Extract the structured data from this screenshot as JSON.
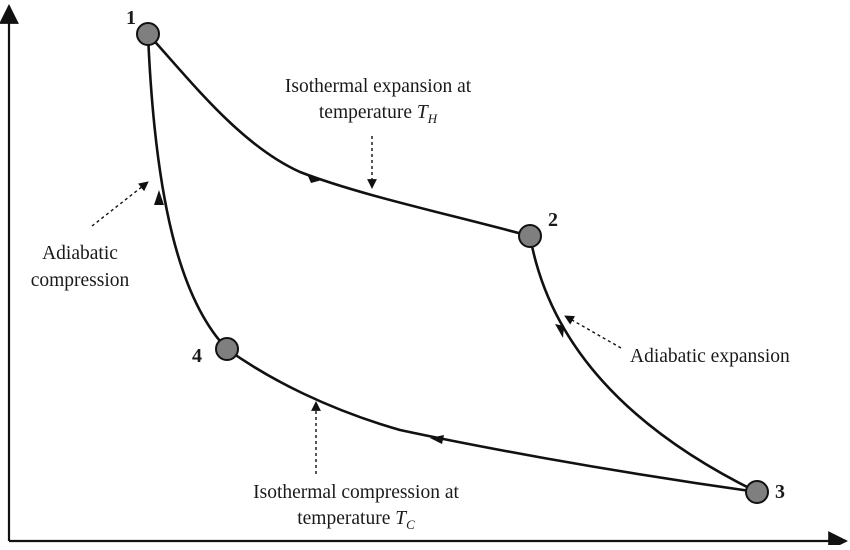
{
  "points": [
    {
      "id": "1",
      "label": "1"
    },
    {
      "id": "2",
      "label": "2"
    },
    {
      "id": "3",
      "label": "3"
    },
    {
      "id": "4",
      "label": "4"
    }
  ],
  "annotations": {
    "isothermal_expansion": {
      "line1": "Isothermal expansion at",
      "line2": "temperature ",
      "symbol": "T",
      "subscript": "H"
    },
    "adiabatic_expansion": {
      "text": "Adiabatic expansion"
    },
    "adiabatic_compression": {
      "line1": "Adiabatic",
      "line2": "compression"
    },
    "isothermal_compression": {
      "line1": "Isothermal compression at",
      "line2": "temperature ",
      "symbol": "T",
      "subscript": "C"
    }
  },
  "colors": {
    "curve": "#111111",
    "node_fill": "#7f7f7f",
    "node_stroke": "#111111"
  }
}
